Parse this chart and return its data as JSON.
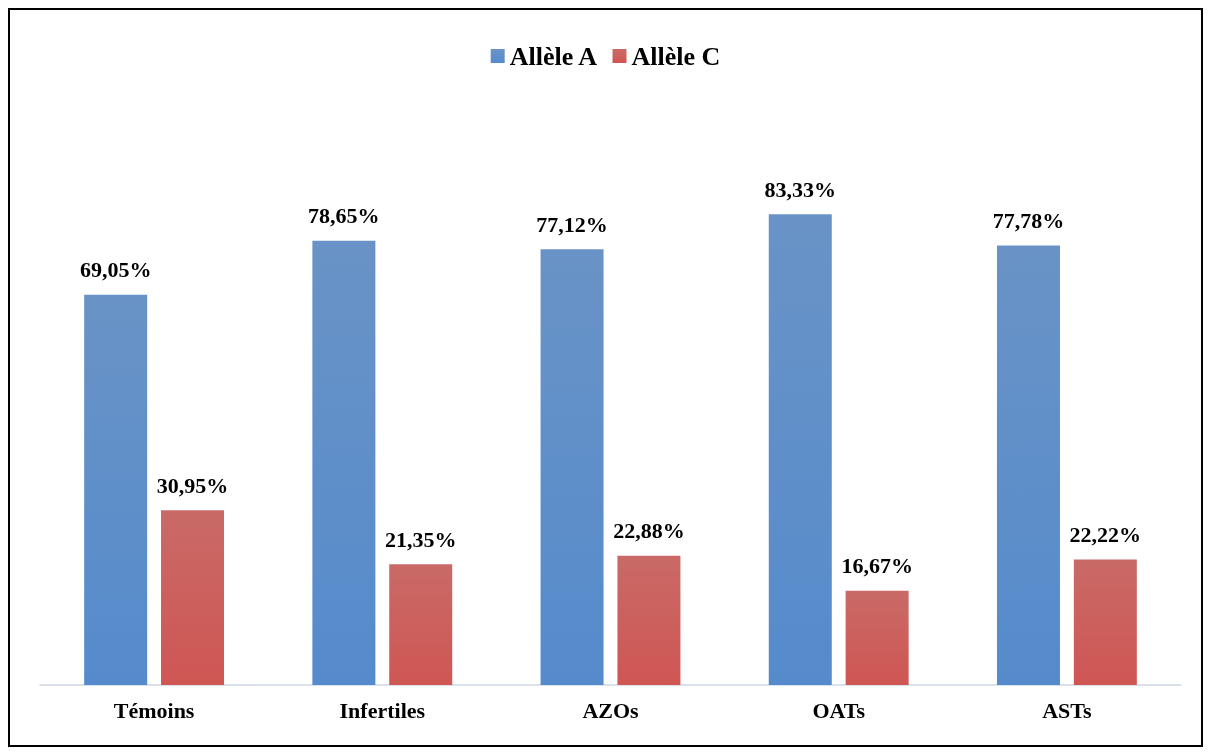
{
  "chart_data": {
    "type": "bar",
    "categories": [
      "Témoins",
      "Infertiles",
      "AZOs",
      "OATs",
      "ASTs"
    ],
    "series": [
      {
        "name": "Allèle A",
        "color": "#4f81bd",
        "values": [
          69.05,
          78.65,
          77.12,
          83.33,
          77.78
        ],
        "value_labels": [
          "69,05%",
          "78,65%",
          "77,12%",
          "83,33%",
          "77,78%"
        ]
      },
      {
        "name": "Allèle C",
        "color": "#c0504d",
        "values": [
          30.95,
          21.35,
          22.88,
          16.67,
          22.22
        ],
        "value_labels": [
          "30,95%",
          "21,35%",
          "22,88%",
          "16,67%",
          "22,22%"
        ]
      }
    ],
    "legend": "top"
  }
}
